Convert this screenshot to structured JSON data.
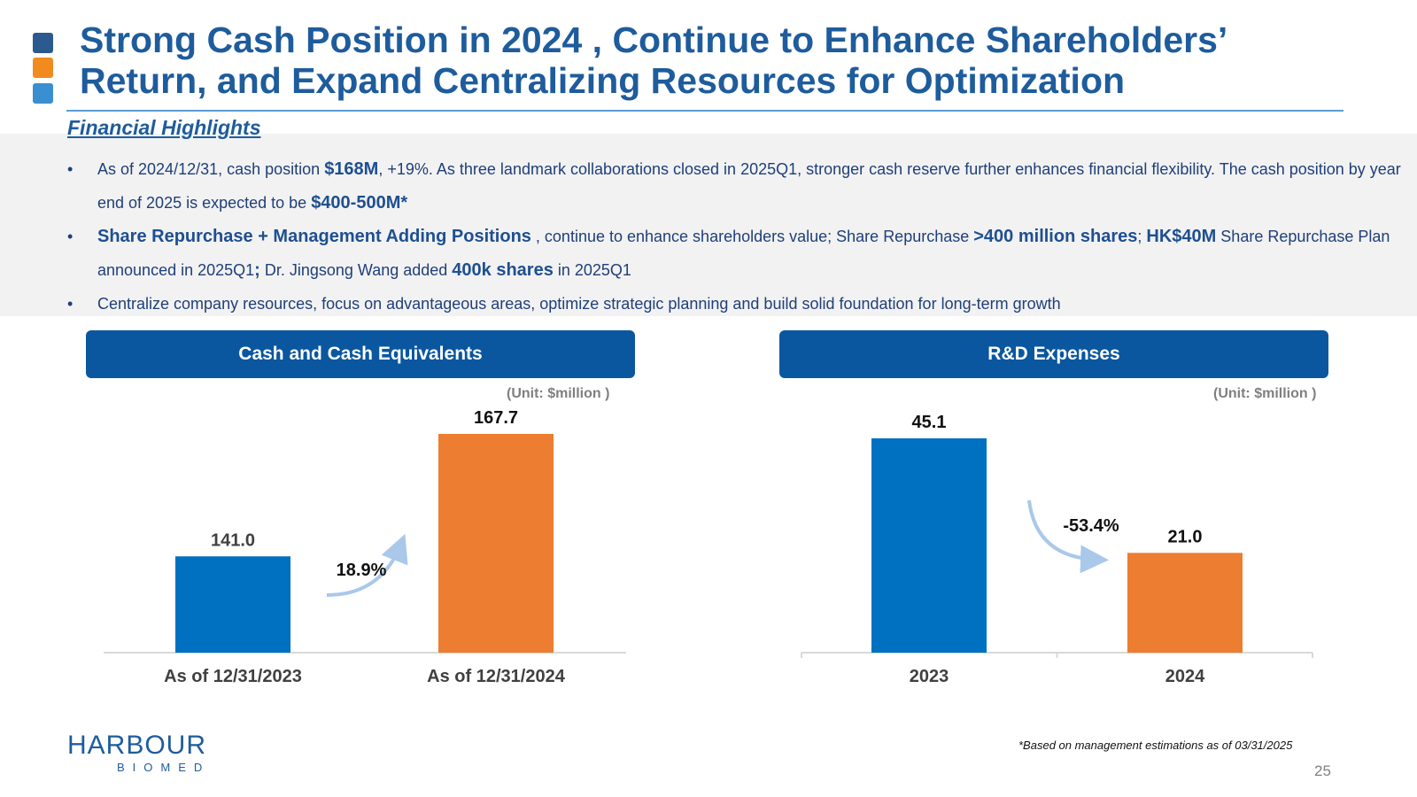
{
  "title": {
    "line1": "Strong Cash Position in 2024 , Continue to Enhance Shareholders’",
    "line2": "Return, and Expand Centralizing Resources for Optimization"
  },
  "colors": {
    "square1": "#2c5a8e",
    "square2": "#f28b1e",
    "square3": "#3a8fd1",
    "blue": "#0070c0",
    "orange": "#ed7d31"
  },
  "highlights": {
    "heading": "Financial Highlights",
    "bullet_char": "•",
    "b1": {
      "t1": "As of 2024/12/31, cash position ",
      "b1": "$168M",
      "t2": ", +19%. As three landmark collaborations closed in 2025Q1, stronger cash reserve further enhances financial flexibility. The cash position by year end of 2025 is expected to be ",
      "b2": "$400-500M*"
    },
    "b2": {
      "b1": "Share Repurchase + Management Adding Positions",
      "t1": " , continue to enhance shareholders value; Share Repurchase ",
      "b2": ">400 million shares",
      "t2": "; ",
      "b3": "HK$40M",
      "t3": " Share Repurchase Plan announced in 2025Q1",
      "b4": ";",
      "t4": " Dr. Jingsong Wang added ",
      "b5": "400k shares",
      "t5": " in 2025Q1"
    },
    "b3": {
      "t1": "Centralize company resources, focus on advantageous areas, optimize strategic planning and build solid foundation for long-term growth"
    }
  },
  "chart_data": [
    {
      "type": "bar",
      "title": "Cash and Cash Equivalents",
      "unit": "(Unit:  $million )",
      "categories": [
        "As of 12/31/2023",
        "As of 12/31/2024"
      ],
      "values": [
        141.0,
        167.7
      ],
      "labels": [
        "141.0",
        "167.7"
      ],
      "change_label": "18.9%",
      "ylim": [
        120,
        175
      ]
    },
    {
      "type": "bar",
      "title": "R&D Expenses",
      "unit": "(Unit:  $million )",
      "categories": [
        "2023",
        "2024"
      ],
      "values": [
        45.1,
        21.0
      ],
      "labels": [
        "45.1",
        "21.0"
      ],
      "change_label": "-53.4%",
      "ylim": [
        0,
        50
      ]
    }
  ],
  "logo": {
    "main": "HARBOUR",
    "sub": "BIOMED"
  },
  "footnote": "*Based on management estimations as of 03/31/2025",
  "page_number": "25"
}
